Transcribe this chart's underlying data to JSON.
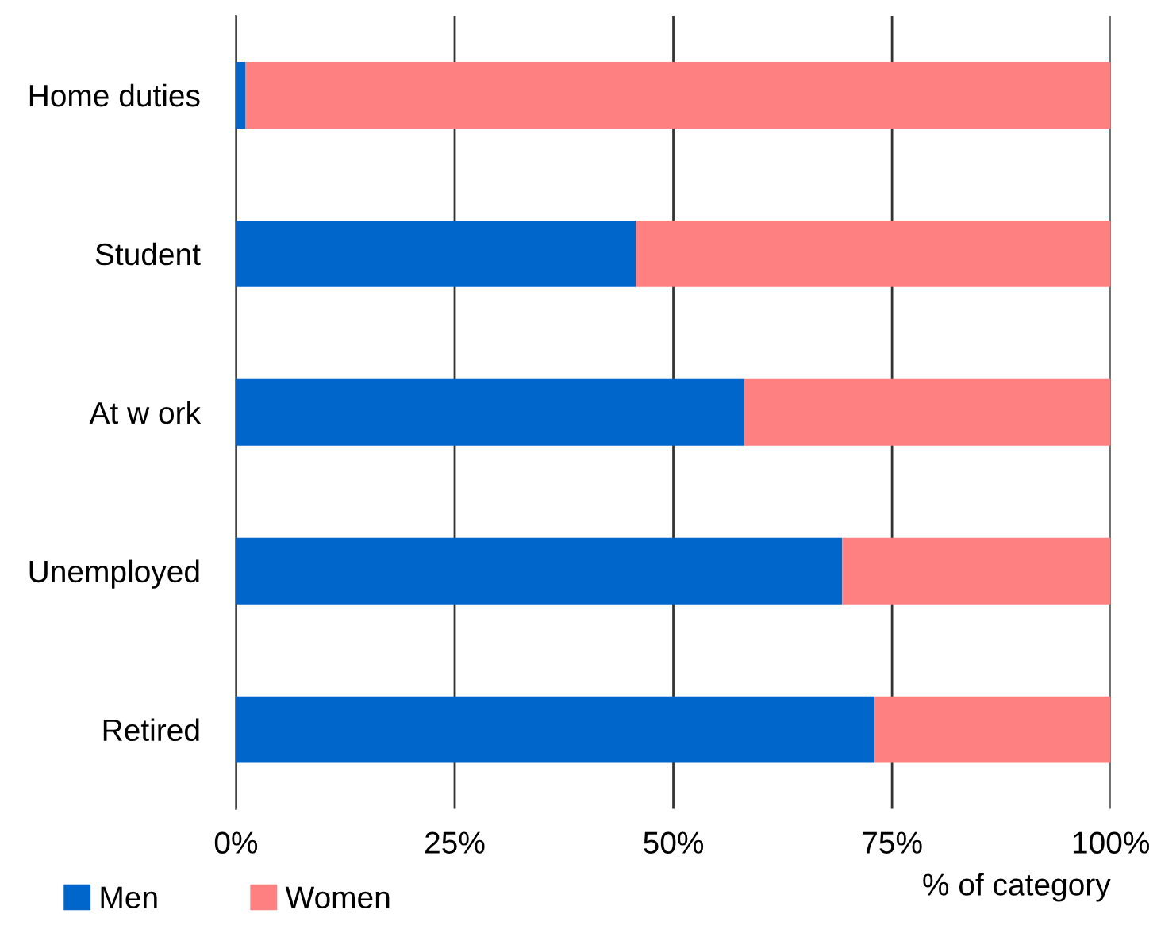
{
  "chart_data": {
    "type": "bar",
    "orientation": "horizontal",
    "stacked": true,
    "categories": [
      "Home duties",
      "Student",
      "At w ork",
      "Unemployed",
      "Retired"
    ],
    "series": [
      {
        "name": "Men",
        "color": "#0066cc",
        "values": [
          1.1,
          45.7,
          58.1,
          69.3,
          73.0
        ]
      },
      {
        "name": "Women",
        "color": "#ff8080",
        "values": [
          98.9,
          54.3,
          41.9,
          30.7,
          27.0
        ]
      }
    ],
    "xlim": [
      0,
      100
    ],
    "xticks": [
      {
        "value": 0,
        "label": "0%"
      },
      {
        "value": 25,
        "label": "25%"
      },
      {
        "value": 50,
        "label": "50%"
      },
      {
        "value": 75,
        "label": "75%"
      },
      {
        "value": 100,
        "label": "100%"
      }
    ],
    "xlabel": "% of category",
    "grid": "x",
    "legend": "bottom left"
  }
}
